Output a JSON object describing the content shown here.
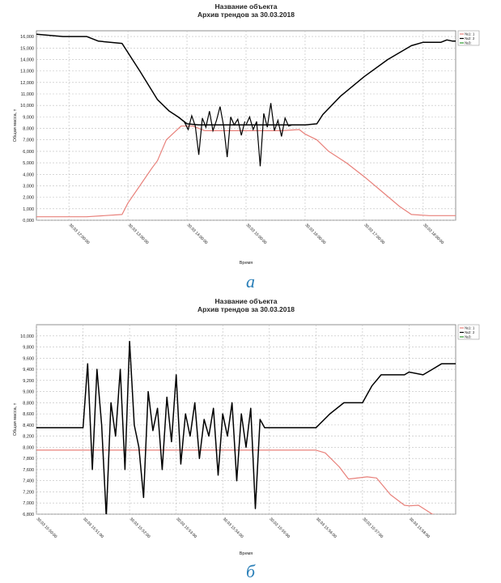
{
  "captions": {
    "a": "а",
    "b": "б"
  },
  "colors": {
    "series1": "#e8807a",
    "series2": "#000000",
    "series3": "#2e9a2e",
    "grid": "#bdbdbd",
    "caption": "#2a7fb8"
  },
  "chart_data": [
    {
      "type": "line",
      "title": "Название объекта",
      "subtitle": "Архив трендов за 30.03.2018",
      "xlabel": "Время",
      "ylabel": "Общая масса, т",
      "x_ticks": [
        "30.03 12:00:00",
        "30.03 13:00:00",
        "30.03 14:00:00",
        "30.03 15:00:00",
        "30.03 16:00:00",
        "30.03 17:00:00",
        "30.03 18:00:00"
      ],
      "xlim": [
        11.45,
        18.55
      ],
      "ylim": [
        0,
        16500
      ],
      "y_ticks": [
        "0,000",
        "1,000",
        "2,000",
        "3,000",
        "4,000",
        "5,000",
        "6,000",
        "7,000",
        "8,000",
        "9,000",
        "10,000",
        "11,000",
        "12,000",
        "13,000",
        "14,000",
        "15,000",
        "16,000"
      ],
      "legend": [
        "№1: 1",
        "№2: 2",
        "№3:"
      ],
      "legend_position": "right",
      "grid": true,
      "series": [
        {
          "name": "№1: 1",
          "color": "#e8807a",
          "x": [
            11.45,
            12.3,
            12.6,
            12.9,
            13.0,
            13.2,
            13.4,
            13.5,
            13.65,
            13.9,
            14.1,
            14.3,
            15.6,
            15.9,
            16.0,
            16.2,
            16.4,
            16.7,
            17.0,
            17.3,
            17.6,
            17.8,
            18.1,
            18.55
          ],
          "y": [
            300,
            300,
            400,
            500,
            1500,
            3000,
            4500,
            5200,
            7000,
            8200,
            8200,
            7800,
            7800,
            7900,
            7500,
            7000,
            6000,
            5000,
            3800,
            2500,
            1200,
            500,
            400,
            400
          ]
        },
        {
          "name": "№2: 2",
          "color": "#000000",
          "x": [
            11.45,
            11.9,
            12.3,
            12.5,
            12.9,
            13.2,
            13.5,
            13.7,
            13.85,
            14.0,
            14.2,
            14.5,
            14.8,
            15.0,
            15.2,
            15.5,
            15.8,
            16.0,
            16.2,
            16.3,
            16.6,
            17.0,
            17.4,
            17.8,
            18.0,
            18.3,
            18.4,
            18.5,
            18.55
          ],
          "y": [
            16200,
            16000,
            16000,
            15600,
            15400,
            13000,
            10500,
            9500,
            9000,
            8400,
            8300,
            8300,
            8300,
            8300,
            8300,
            8300,
            8300,
            8300,
            8400,
            9200,
            10800,
            12500,
            14000,
            15200,
            15500,
            15500,
            15700,
            15600,
            15600
          ],
          "noise": [
            {
              "x": [
                13.95,
                14.02,
                14.08,
                14.14,
                14.2,
                14.26,
                14.32,
                14.38,
                14.44,
                14.5,
                14.56,
                14.62,
                14.68,
                14.74,
                14.8,
                14.86,
                14.92,
                14.98
              ],
              "y": [
                8600,
                7900,
                9100,
                8200,
                5700,
                8900,
                8100,
                9500,
                7800,
                8700,
                9900,
                8200,
                5500,
                9000,
                8300,
                8800,
                7400,
                8600
              ]
            },
            {
              "x": [
                15.0,
                15.06,
                15.12,
                15.18,
                15.24,
                15.3,
                15.36,
                15.42,
                15.48,
                15.54,
                15.6,
                15.66,
                15.72,
                15.78
              ],
              "y": [
                8300,
                9000,
                7900,
                8600,
                4700,
                9300,
                8100,
                10200,
                7800,
                8700,
                7300,
                8900,
                8200,
                8300
              ]
            }
          ]
        },
        {
          "name": "№3:",
          "color": "#2e9a2e",
          "x": [],
          "y": []
        }
      ]
    },
    {
      "type": "line",
      "title": "Название объекта",
      "subtitle": "Архив трендов за 30.03.2018",
      "xlabel": "Время",
      "ylabel": "Общая масса, т",
      "x_ticks": [
        "30.03 15:50:00",
        "30.03 15:51:00",
        "30.03 15:52:00",
        "30.03 15:53:00",
        "30.03 15:54:00",
        "30.03 15:55:00",
        "30.03 15:56:00",
        "30.03 15:57:00",
        "30.03 15:58:00"
      ],
      "xlim": [
        0.0,
        9.0
      ],
      "ylim": [
        6800,
        10200
      ],
      "y_ticks": [
        "6,800",
        "7,000",
        "7,200",
        "7,400",
        "7,600",
        "7,800",
        "8,000",
        "8,200",
        "8,400",
        "8,600",
        "8,800",
        "9,000",
        "9,200",
        "9,400",
        "9,600",
        "9,800",
        "10,000"
      ],
      "legend": [
        "№1: 1",
        "№2: 2",
        "№3:"
      ],
      "legend_position": "right",
      "grid": true,
      "series": [
        {
          "name": "№1: 1",
          "color": "#e8807a",
          "x": [
            0.0,
            6.0,
            6.2,
            6.5,
            6.7,
            7.1,
            7.3,
            7.6,
            7.9,
            8.0,
            8.2,
            8.5,
            9.0
          ],
          "y": [
            7950,
            7950,
            7900,
            7650,
            7430,
            7470,
            7450,
            7150,
            6960,
            6950,
            6960,
            6800,
            6700
          ]
        },
        {
          "name": "№2: 2",
          "color": "#000000",
          "x": [
            0.0,
            1.0,
            1.1,
            1.2,
            1.3,
            1.4,
            1.5,
            1.6,
            1.7,
            1.8,
            1.9,
            2.0,
            2.1,
            2.2,
            2.3,
            2.4,
            2.5,
            2.6,
            2.7,
            2.8,
            2.9,
            3.0,
            3.1,
            3.2,
            3.3,
            3.4,
            3.5,
            3.6,
            3.7,
            3.8,
            3.9,
            4.0,
            4.1,
            4.2,
            4.3,
            4.4,
            4.5,
            4.6,
            4.7,
            4.8,
            4.9,
            5.0,
            6.0,
            6.3,
            6.6,
            7.0,
            7.2,
            7.4,
            7.6,
            7.9,
            8.0,
            8.3,
            8.5,
            8.7,
            9.0
          ],
          "y": [
            8350,
            8350,
            9500,
            7600,
            9400,
            8400,
            6750,
            8800,
            8200,
            9400,
            7600,
            9900,
            8400,
            8000,
            7100,
            9000,
            8300,
            8700,
            7600,
            8900,
            8100,
            9300,
            7700,
            8600,
            8200,
            8800,
            7800,
            8500,
            8200,
            8700,
            7500,
            8600,
            8200,
            8800,
            7400,
            8600,
            8000,
            8700,
            6900,
            8500,
            8350,
            8350,
            8350,
            8600,
            8800,
            8800,
            9100,
            9300,
            9300,
            9300,
            9350,
            9300,
            9400,
            9500,
            9500
          ]
        },
        {
          "name": "№3:",
          "color": "#2e9a2e",
          "x": [],
          "y": []
        }
      ]
    }
  ]
}
